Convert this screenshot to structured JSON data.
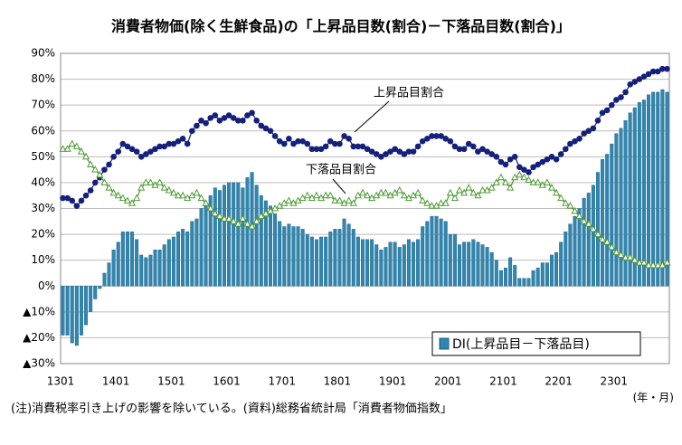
{
  "chart_data": {
    "type": "bar",
    "title": "消費者物価(除く生鮮食品)の「上昇品目数(割合)－下落品目数(割合)」",
    "note": "(注)消費税率引き上げの影響を除いている。(資料)総務省統計局「消費者物価指数」",
    "x_label": "(年・月)",
    "categories": [
      "1301",
      null,
      null,
      null,
      null,
      null,
      null,
      null,
      null,
      null,
      null,
      null,
      "1401",
      null,
      null,
      null,
      null,
      null,
      null,
      null,
      null,
      null,
      null,
      null,
      "1501",
      null,
      null,
      null,
      null,
      null,
      null,
      null,
      null,
      null,
      null,
      null,
      "1601",
      null,
      null,
      null,
      null,
      null,
      null,
      null,
      null,
      null,
      null,
      null,
      "1701",
      null,
      null,
      null,
      null,
      null,
      null,
      null,
      null,
      null,
      null,
      null,
      "1801",
      null,
      null,
      null,
      null,
      null,
      null,
      null,
      null,
      null,
      null,
      null,
      "1901",
      null,
      null,
      null,
      null,
      null,
      null,
      null,
      null,
      null,
      null,
      null,
      "2001",
      null,
      null,
      null,
      null,
      null,
      null,
      null,
      null,
      null,
      null,
      null,
      "2101",
      null,
      null,
      null,
      null,
      null,
      null,
      null,
      null,
      null,
      null,
      null,
      "2201",
      null,
      null,
      null,
      null,
      null,
      null,
      null,
      null,
      null,
      null,
      null,
      "2301",
      null,
      null,
      null,
      null,
      null,
      null,
      null,
      null,
      null,
      null,
      null
    ],
    "ylim": [
      -30,
      90
    ],
    "yticks": [
      {
        "value": -30,
        "label": "▲30%"
      },
      {
        "value": -20,
        "label": "▲20%"
      },
      {
        "value": -10,
        "label": "▲10%"
      },
      {
        "value": 0,
        "label": "0%"
      },
      {
        "value": 10,
        "label": "10%"
      },
      {
        "value": 20,
        "label": "20%"
      },
      {
        "value": 30,
        "label": "30%"
      },
      {
        "value": 40,
        "label": "40%"
      },
      {
        "value": 50,
        "label": "50%"
      },
      {
        "value": 60,
        "label": "60%"
      },
      {
        "value": 70,
        "label": "70%"
      },
      {
        "value": 80,
        "label": "80%"
      },
      {
        "value": 90,
        "label": "90%"
      }
    ],
    "grid": true,
    "annotations": [
      {
        "text": "上昇品目割合"
      },
      {
        "text": "下落品目割合"
      }
    ],
    "series": [
      {
        "name": "DI(上昇品目－下落品目)",
        "type": "bar",
        "color": "#2f86b0",
        "values": [
          -19,
          -19,
          -22,
          -23,
          -19,
          -15,
          -10,
          -5,
          -1,
          5,
          9,
          14,
          17,
          21,
          21,
          21,
          18,
          12,
          11,
          12,
          14,
          14,
          16,
          18,
          19,
          21,
          22,
          21,
          25,
          26,
          30,
          31,
          35,
          38,
          37,
          39,
          40,
          40,
          40,
          38,
          42,
          44,
          39,
          35,
          33,
          31,
          28,
          25,
          23,
          24,
          23,
          23,
          22,
          20,
          19,
          18,
          19,
          19,
          21,
          22,
          22,
          26,
          24,
          22,
          19,
          18,
          18,
          18,
          16,
          14,
          15,
          17,
          17,
          15,
          16,
          18,
          17,
          18,
          23,
          25,
          27,
          27,
          26,
          25,
          20,
          20,
          16,
          17,
          17,
          18,
          17,
          16,
          15,
          13,
          10,
          6,
          7,
          11,
          8,
          3,
          3,
          3,
          6,
          7,
          9,
          9,
          12,
          13,
          17,
          21,
          24,
          27,
          30,
          34,
          36,
          39,
          44,
          49,
          51,
          55,
          59,
          61,
          64,
          67,
          69,
          71,
          72,
          74,
          75,
          75,
          76,
          75
        ]
      },
      {
        "name": "上昇品目割合",
        "type": "line",
        "marker": "circle",
        "color": "#15207a",
        "values": [
          34,
          34,
          33,
          31,
          33,
          35,
          37,
          40,
          42,
          45,
          47,
          50,
          52,
          55,
          54,
          53,
          52,
          50,
          51,
          52,
          53,
          54,
          54,
          55,
          55,
          56,
          57,
          55,
          60,
          62,
          64,
          63,
          65,
          66,
          64,
          65,
          66,
          65,
          64,
          64,
          66,
          67,
          64,
          62,
          61,
          60,
          58,
          56,
          55,
          57,
          55,
          56,
          56,
          55,
          53,
          53,
          53,
          54,
          56,
          55,
          55,
          58,
          57,
          54,
          54,
          54,
          53,
          52,
          51,
          50,
          51,
          52,
          53,
          52,
          51,
          52,
          52,
          54,
          56,
          57,
          58,
          58,
          58,
          57,
          56,
          54,
          53,
          53,
          55,
          54,
          52,
          53,
          52,
          51,
          50,
          48,
          47,
          49,
          50,
          46,
          45,
          44,
          46,
          47,
          48,
          49,
          50,
          49,
          51,
          53,
          55,
          56,
          57,
          59,
          60,
          61,
          64,
          67,
          68,
          70,
          72,
          73,
          75,
          78,
          79,
          80,
          81,
          82,
          83,
          83,
          84,
          84
        ]
      },
      {
        "name": "下落品目割合",
        "type": "line",
        "marker": "triangle",
        "color": "#4f9a35",
        "values": [
          53,
          53,
          55,
          54,
          52,
          50,
          47,
          45,
          43,
          40,
          38,
          36,
          35,
          34,
          33,
          32,
          34,
          38,
          40,
          40,
          39,
          40,
          38,
          37,
          36,
          35,
          35,
          34,
          35,
          36,
          34,
          32,
          30,
          28,
          27,
          26,
          26,
          25,
          24,
          26,
          24,
          23,
          25,
          27,
          28,
          29,
          30,
          31,
          32,
          33,
          32,
          33,
          34,
          35,
          34,
          35,
          34,
          35,
          35,
          33,
          33,
          32,
          33,
          32,
          35,
          36,
          35,
          34,
          35,
          36,
          36,
          35,
          36,
          37,
          35,
          34,
          35,
          36,
          33,
          32,
          31,
          31,
          32,
          32,
          36,
          34,
          37,
          36,
          38,
          36,
          35,
          37,
          37,
          38,
          40,
          42,
          40,
          38,
          42,
          43,
          42,
          41,
          40,
          40,
          39,
          40,
          38,
          36,
          34,
          32,
          31,
          29,
          27,
          25,
          24,
          22,
          20,
          18,
          17,
          15,
          13,
          12,
          11,
          11,
          10,
          9,
          9,
          8,
          8,
          8,
          8,
          9
        ]
      }
    ]
  }
}
